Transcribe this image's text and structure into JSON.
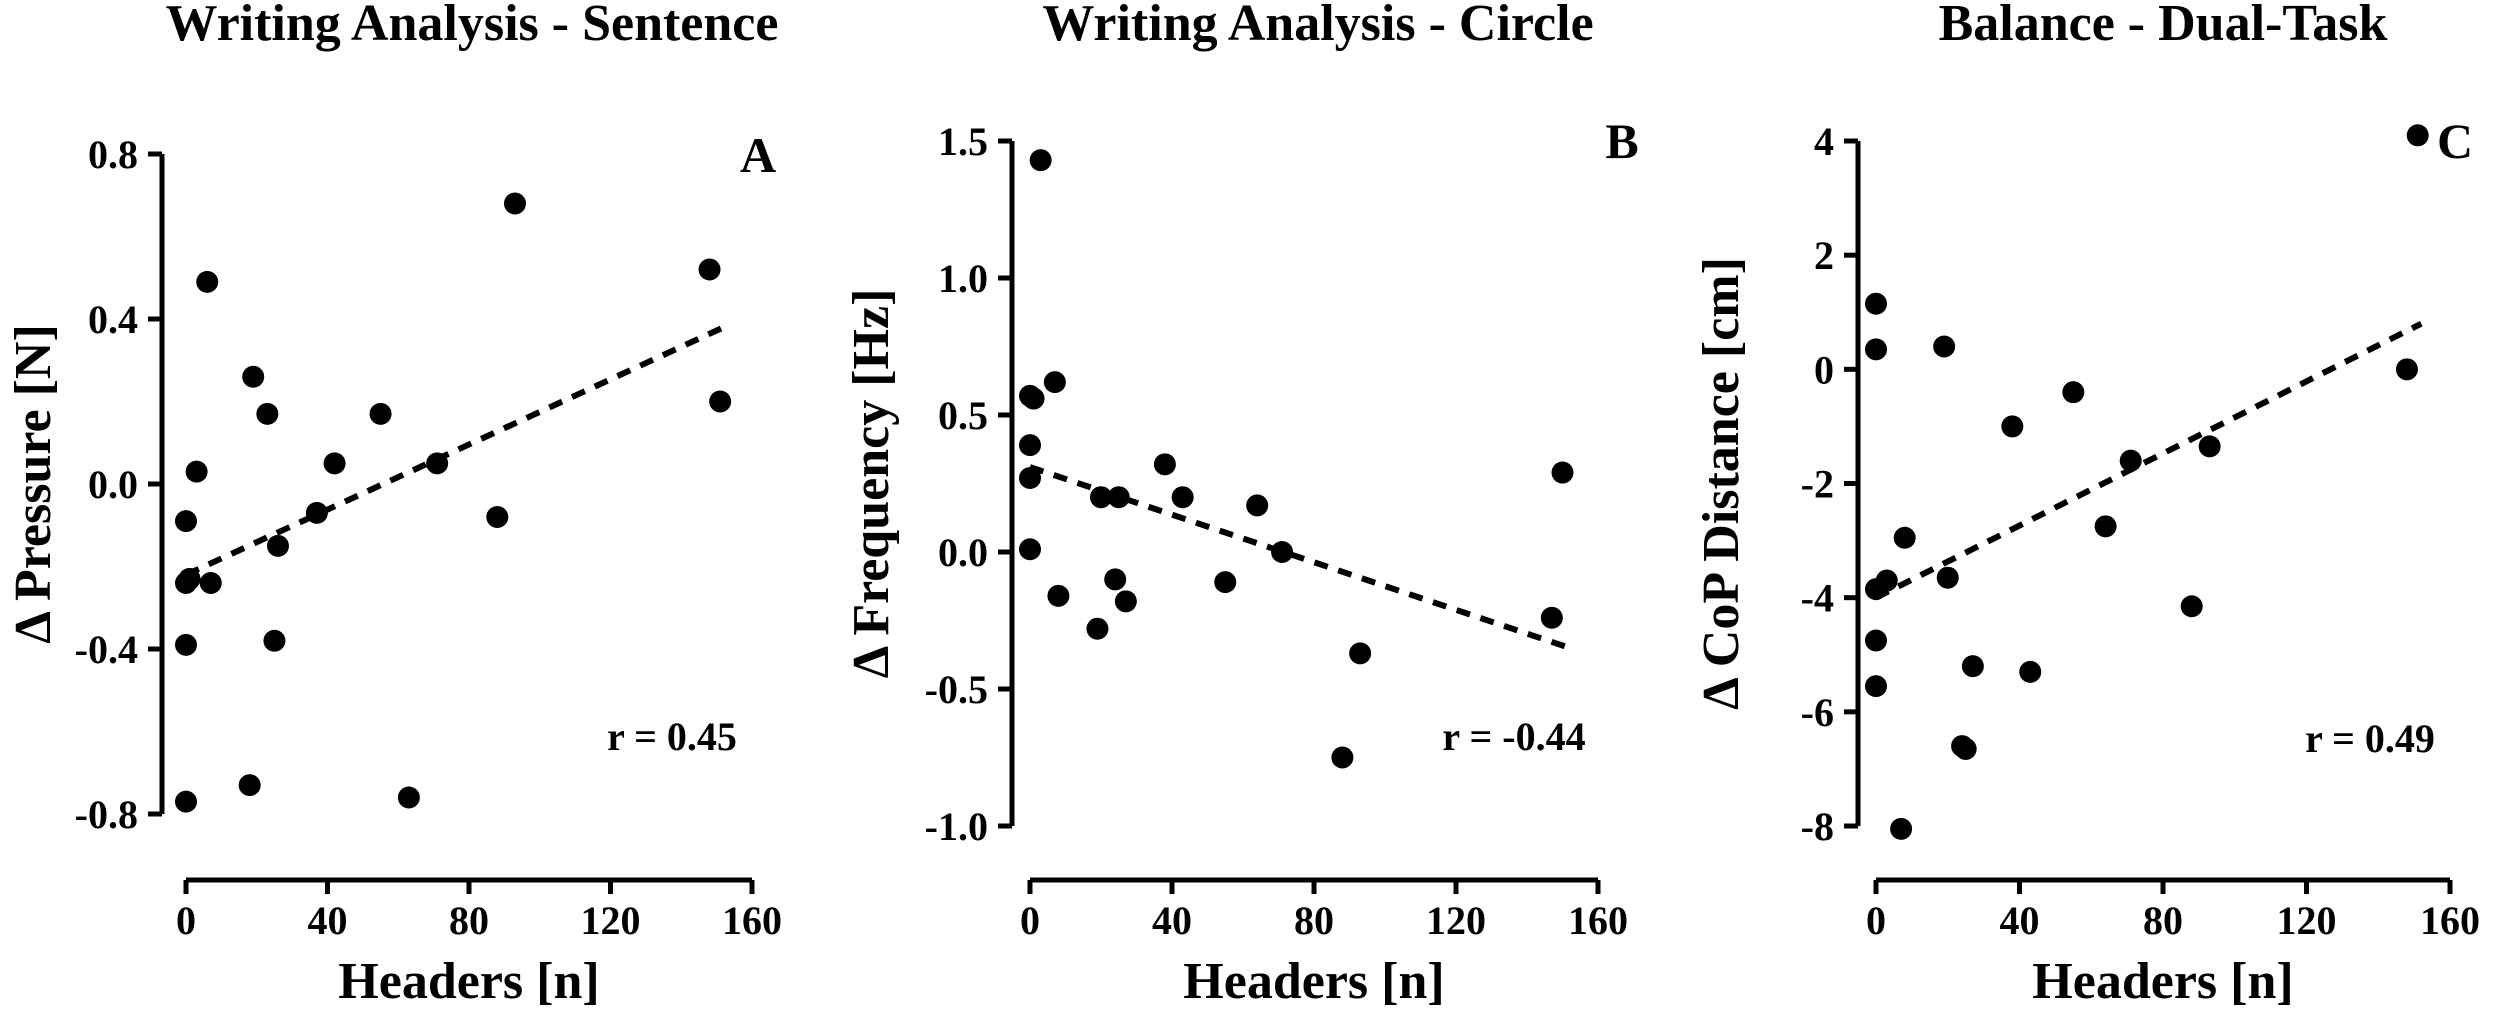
{
  "chart_data": [
    {
      "type": "scatter",
      "title": "Writing Analysis - Sentence",
      "panel_letter": "A",
      "xlabel": "Headers [n]",
      "ylabel": "Δ Pressure [N]",
      "xlim": [
        0,
        160
      ],
      "ylim": [
        -0.8,
        0.8
      ],
      "xticks": [
        0,
        40,
        80,
        120,
        160
      ],
      "yticks": [
        -0.8,
        -0.4,
        0.0,
        0.4,
        0.8
      ],
      "ytick_labels": [
        "-0.8",
        "-0.4",
        "0.0",
        "0.4",
        "0.8"
      ],
      "points": [
        [
          0,
          -0.09
        ],
        [
          0,
          -0.24
        ],
        [
          0,
          -0.39
        ],
        [
          0,
          -0.77
        ],
        [
          1,
          -0.23
        ],
        [
          3,
          0.03
        ],
        [
          6,
          0.49
        ],
        [
          7,
          -0.24
        ],
        [
          18,
          -0.73
        ],
        [
          19,
          0.26
        ],
        [
          23,
          0.17
        ],
        [
          25,
          -0.38
        ],
        [
          26,
          -0.15
        ],
        [
          37,
          -0.07
        ],
        [
          42,
          0.05
        ],
        [
          55,
          0.17
        ],
        [
          63,
          -0.76
        ],
        [
          71,
          0.05
        ],
        [
          88,
          -0.08
        ],
        [
          93,
          0.68
        ],
        [
          148,
          0.52
        ],
        [
          151,
          0.2
        ]
      ],
      "trend": [
        [
          0,
          -0.22
        ],
        [
          152,
          0.38
        ]
      ],
      "r_label": "r = 0.45",
      "grid": false
    },
    {
      "type": "scatter",
      "title": "Writing Analysis - Circle",
      "panel_letter": "B",
      "xlabel": "Headers [n]",
      "ylabel": "Δ Frequency [Hz]",
      "xlim": [
        0,
        160
      ],
      "ylim": [
        -1.0,
        1.5
      ],
      "xticks": [
        0,
        40,
        80,
        120,
        160
      ],
      "yticks": [
        -1.0,
        -0.5,
        0.0,
        0.5,
        1.0,
        1.5
      ],
      "ytick_labels": [
        "-1.0",
        "-0.5",
        "0.0",
        "0.5",
        "1.0",
        "1.5"
      ],
      "points": [
        [
          0,
          0.57
        ],
        [
          0,
          0.39
        ],
        [
          0,
          0.27
        ],
        [
          0,
          0.01
        ],
        [
          1,
          0.56
        ],
        [
          3,
          1.43
        ],
        [
          7,
          0.62
        ],
        [
          8,
          -0.16
        ],
        [
          19,
          -0.28
        ],
        [
          20,
          0.2
        ],
        [
          24,
          -0.1
        ],
        [
          25,
          0.2
        ],
        [
          27,
          -0.18
        ],
        [
          38,
          0.32
        ],
        [
          43,
          0.2
        ],
        [
          55,
          -0.11
        ],
        [
          64,
          0.17
        ],
        [
          71,
          0.0
        ],
        [
          88,
          -0.75
        ],
        [
          93,
          -0.37
        ],
        [
          147,
          -0.24
        ],
        [
          150,
          0.29
        ]
      ],
      "trend": [
        [
          0,
          0.31
        ],
        [
          152,
          -0.35
        ]
      ],
      "r_label": "r = -0.44",
      "grid": false
    },
    {
      "type": "scatter",
      "title": "Balance - Dual-Task",
      "panel_letter": "C",
      "xlabel": "Headers [n]",
      "ylabel": "Δ CoP Distance [cm]",
      "xlim": [
        0,
        160
      ],
      "ylim": [
        -8,
        4
      ],
      "xticks": [
        0,
        40,
        80,
        120,
        160
      ],
      "yticks": [
        -8,
        -6,
        -4,
        -2,
        0,
        2,
        4
      ],
      "ytick_labels": [
        "-8",
        "-6",
        "-4",
        "-2",
        "0",
        "2",
        "4"
      ],
      "points": [
        [
          0,
          1.15
        ],
        [
          0,
          0.35
        ],
        [
          0,
          -3.85
        ],
        [
          0,
          -4.75
        ],
        [
          0,
          -5.55
        ],
        [
          3,
          -3.7
        ],
        [
          7,
          -8.05
        ],
        [
          8,
          -2.95
        ],
        [
          19,
          0.4
        ],
        [
          20,
          -3.65
        ],
        [
          24,
          -6.6
        ],
        [
          25,
          -6.65
        ],
        [
          27,
          -5.2
        ],
        [
          38,
          -1.0
        ],
        [
          43,
          -5.3
        ],
        [
          55,
          -0.4
        ],
        [
          64,
          -2.75
        ],
        [
          71,
          -1.6
        ],
        [
          88,
          -4.15
        ],
        [
          93,
          -1.35
        ],
        [
          148,
          0.0
        ],
        [
          151,
          4.1
        ]
      ],
      "trend": [
        [
          0,
          -4.0
        ],
        [
          152,
          0.8
        ]
      ],
      "r_label": "r = 0.49",
      "grid": false
    }
  ]
}
